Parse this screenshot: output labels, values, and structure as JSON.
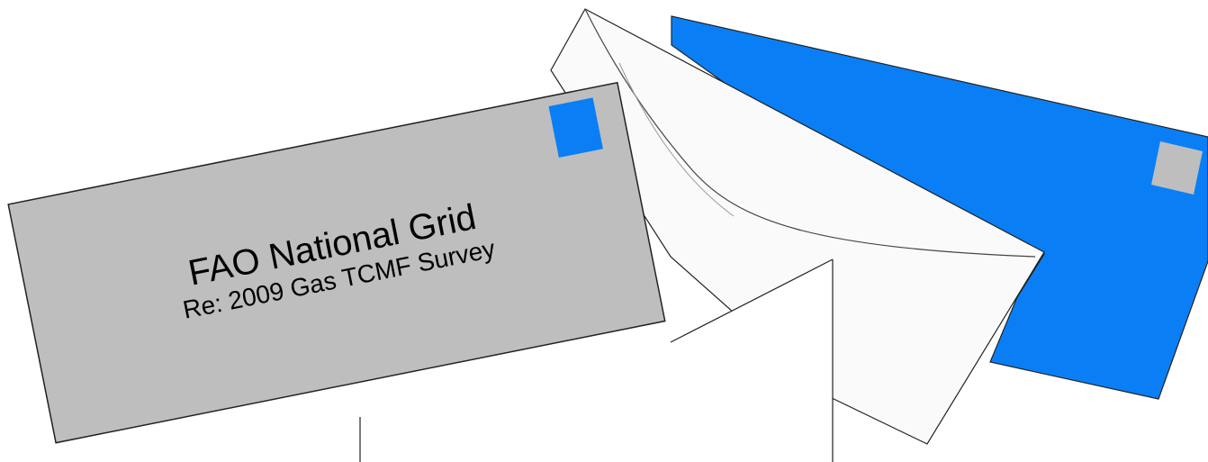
{
  "envelope_front": {
    "line1": "FAO National Grid",
    "line2": "Re: 2009 Gas TCMF Survey",
    "color": "#bebebe",
    "stamp_color": "#0a7ff5"
  },
  "envelope_back": {
    "color": "#0a7ff5",
    "stamp_color": "#bebebe"
  },
  "envelope_open": {
    "color": "#fafafa",
    "flap_color": "#ffffff"
  }
}
